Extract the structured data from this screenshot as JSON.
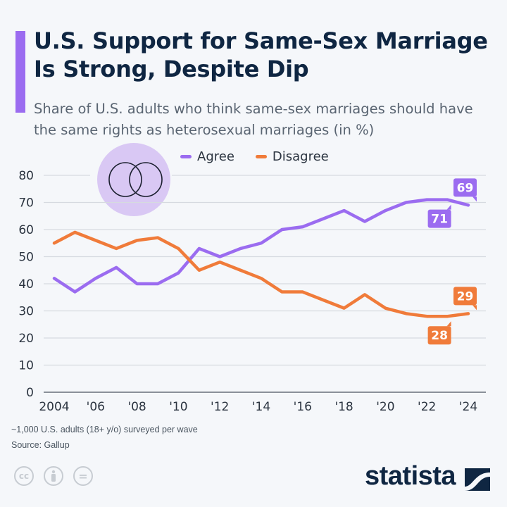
{
  "header": {
    "title": "U.S. Support for Same-Sex Marriage Is Strong, Despite Dip",
    "subtitle": "Share of U.S. adults who think same-sex marriages should have the same rights as heterosexual marriages (in %)"
  },
  "footer": {
    "note": "~1,000 U.S. adults (18+ y/o) surveyed per wave",
    "source": "Source: Gallup",
    "license_icons": [
      "cc-icon",
      "attribution-icon",
      "no-derivatives-icon"
    ],
    "cc_label": "cc",
    "nd_label": "=",
    "brand": "statista"
  },
  "chart_data": {
    "type": "line",
    "x": [
      2004,
      2005,
      2006,
      2007,
      2008,
      2009,
      2010,
      2011,
      2012,
      2013,
      2014,
      2015,
      2016,
      2017,
      2018,
      2019,
      2020,
      2021,
      2022,
      2023,
      2024
    ],
    "x_tick_values": [
      2004,
      2006,
      2008,
      2010,
      2012,
      2014,
      2016,
      2018,
      2020,
      2022,
      2024
    ],
    "x_tick_labels": [
      "2004",
      "'06",
      "'08",
      "'10",
      "'12",
      "'14",
      "'16",
      "'18",
      "'20",
      "'22",
      "'24"
    ],
    "y_ticks": [
      0,
      10,
      20,
      30,
      40,
      50,
      60,
      70,
      80
    ],
    "ylim": [
      0,
      80
    ],
    "grid": true,
    "legend": "top-center",
    "series": [
      {
        "name": "Agree",
        "color": "#9b6cf0",
        "values": [
          42,
          37,
          42,
          46,
          40,
          40,
          44,
          53,
          50,
          53,
          55,
          60,
          61,
          64,
          67,
          63,
          67,
          70,
          71,
          71,
          69
        ]
      },
      {
        "name": "Disagree",
        "color": "#f07b3a",
        "values": [
          55,
          59,
          56,
          53,
          56,
          57,
          53,
          45,
          48,
          45,
          42,
          37,
          37,
          34,
          31,
          36,
          31,
          29,
          28,
          28,
          29
        ]
      }
    ],
    "annotations": [
      {
        "series": "Agree",
        "x": 2024,
        "label": "69",
        "position": "above"
      },
      {
        "series": "Agree",
        "x": 2023,
        "label": "71",
        "position": "below"
      },
      {
        "series": "Disagree",
        "x": 2024,
        "label": "29",
        "position": "above"
      },
      {
        "series": "Disagree",
        "x": 2023,
        "label": "28",
        "position": "below"
      }
    ]
  }
}
